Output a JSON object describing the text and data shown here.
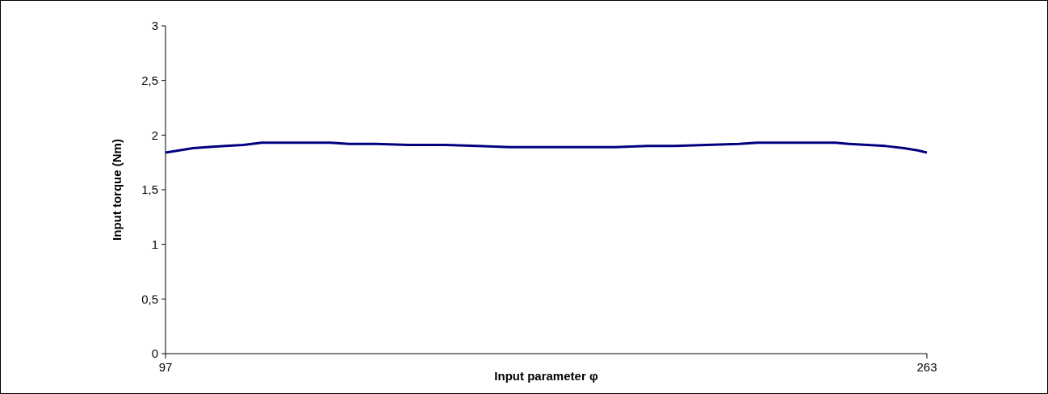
{
  "chart_data": {
    "type": "line",
    "xlabel": "Input parameter φ",
    "ylabel": "Input torque (Nm)",
    "x": [
      97,
      100,
      103,
      106,
      110,
      114,
      118,
      125,
      133,
      137,
      143,
      150,
      158,
      165,
      172,
      180,
      188,
      195,
      202,
      208,
      215,
      222,
      226,
      235,
      243,
      246,
      250,
      254,
      258,
      261,
      263
    ],
    "series": [
      {
        "color": "#000080",
        "values": [
          1.84,
          1.86,
          1.88,
          1.89,
          1.9,
          1.91,
          1.93,
          1.93,
          1.93,
          1.92,
          1.92,
          1.91,
          1.91,
          1.9,
          1.89,
          1.89,
          1.89,
          1.89,
          1.9,
          1.9,
          1.91,
          1.92,
          1.93,
          1.93,
          1.93,
          1.92,
          1.91,
          1.9,
          1.88,
          1.86,
          1.84
        ]
      }
    ],
    "xlim": [
      97,
      263
    ],
    "xticks": [
      97,
      263
    ],
    "ylim": [
      0,
      3
    ],
    "yticks": [
      0,
      {
        "value": 0.5,
        "label": "0,5"
      },
      1,
      {
        "value": 1.5,
        "label": "1,5"
      },
      2,
      {
        "value": 2.5,
        "label": "2,5"
      },
      3
    ],
    "marker": "none",
    "line_style": "solid"
  }
}
